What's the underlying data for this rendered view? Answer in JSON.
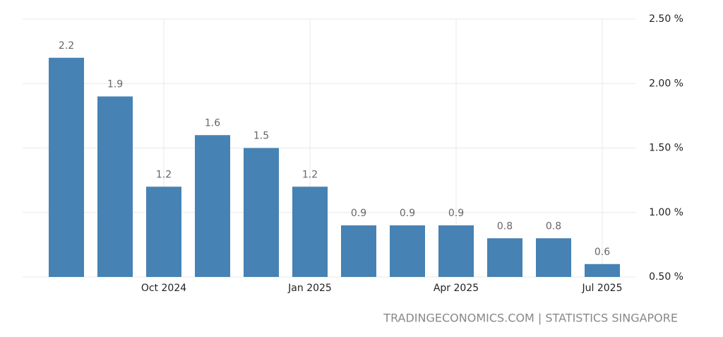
{
  "chart_data": {
    "type": "bar",
    "categories": [
      null,
      null,
      "Oct 2024",
      null,
      null,
      "Jan 2025",
      null,
      null,
      "Apr 2025",
      null,
      null,
      "Jul 2025"
    ],
    "values": [
      2.2,
      1.9,
      1.2,
      1.6,
      1.5,
      1.2,
      0.9,
      0.9,
      0.9,
      0.8,
      0.8,
      0.6
    ],
    "color": "#4682b4",
    "ylim": [
      0.5,
      2.5
    ],
    "yticks": [
      {
        "value": 0.5,
        "label": "0.50 %"
      },
      {
        "value": 1.0,
        "label": "1.00 %"
      },
      {
        "value": 1.5,
        "label": "1.50 %"
      },
      {
        "value": 2.0,
        "label": "2.00 %"
      },
      {
        "value": 2.5,
        "label": "2.50 %"
      }
    ],
    "grid": true,
    "source": "TRADINGECONOMICS.COM | STATISTICS SINGAPORE"
  }
}
